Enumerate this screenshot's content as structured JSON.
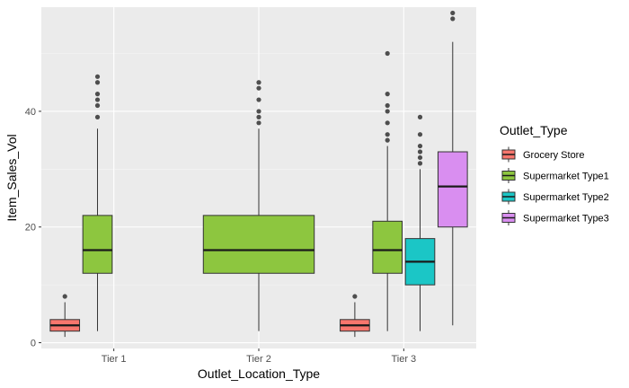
{
  "chart_data": {
    "type": "boxplot",
    "xlabel": "Outlet_Location_Type",
    "ylabel": "Item_Sales_Vol",
    "categories": [
      "Tier 1",
      "Tier 2",
      "Tier 3"
    ],
    "ylim": [
      -1,
      58
    ],
    "yticks": [
      0,
      20,
      40
    ],
    "grid": true,
    "legend": {
      "title": "Outlet_Type",
      "placement": "right",
      "entries": [
        {
          "name": "Grocery Store",
          "color": "#F8766D"
        },
        {
          "name": "Supermarket Type1",
          "color": "#8DC63F"
        },
        {
          "name": "Supermarket Type2",
          "color": "#1BC6C6"
        },
        {
          "name": "Supermarket Type3",
          "color": "#D98EF0"
        }
      ]
    },
    "colors": {
      "panel": "#EBEBEB",
      "grid_major": "#FFFFFF",
      "grid_minor": "#F5F5F5",
      "outline": "#333333",
      "outlier": "#333333"
    },
    "boxes": [
      {
        "category": "Tier 1",
        "series": "Grocery Store",
        "whisker_low": 1,
        "q1": 2,
        "median": 3,
        "q3": 4,
        "whisker_high": 7,
        "outliers": [
          8
        ]
      },
      {
        "category": "Tier 1",
        "series": "Supermarket Type1",
        "whisker_low": 2,
        "q1": 12,
        "median": 16,
        "q3": 22,
        "whisker_high": 37,
        "outliers": [
          39,
          41,
          42,
          43,
          45,
          46
        ]
      },
      {
        "category": "Tier 2",
        "series": "Supermarket Type1",
        "whisker_low": 2,
        "q1": 12,
        "median": 16,
        "q3": 22,
        "whisker_high": 37,
        "outliers": [
          38,
          39,
          40,
          42,
          44,
          45
        ]
      },
      {
        "category": "Tier 3",
        "series": "Grocery Store",
        "whisker_low": 1,
        "q1": 2,
        "median": 3,
        "q3": 4,
        "whisker_high": 7,
        "outliers": [
          8
        ]
      },
      {
        "category": "Tier 3",
        "series": "Supermarket Type1",
        "whisker_low": 2,
        "q1": 12,
        "median": 16,
        "q3": 21,
        "whisker_high": 34,
        "outliers": [
          35,
          36,
          38,
          40,
          41,
          43,
          50
        ]
      },
      {
        "category": "Tier 3",
        "series": "Supermarket Type2",
        "whisker_low": 2,
        "q1": 10,
        "median": 14,
        "q3": 18,
        "whisker_high": 30,
        "outliers": [
          31,
          32,
          33,
          34,
          36,
          39
        ]
      },
      {
        "category": "Tier 3",
        "series": "Supermarket Type3",
        "whisker_low": 3,
        "q1": 20,
        "median": 27,
        "q3": 33,
        "whisker_high": 52,
        "outliers": [
          56,
          57
        ]
      }
    ]
  }
}
